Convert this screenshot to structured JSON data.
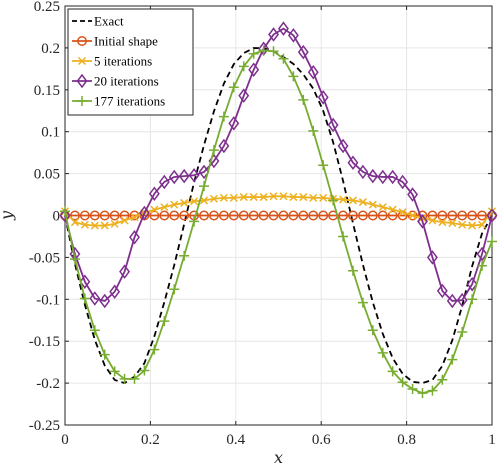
{
  "chart_data": {
    "type": "line",
    "xlabel": "x",
    "ylabel": "y",
    "xlim": [
      0,
      1
    ],
    "ylim": [
      -0.25,
      0.25
    ],
    "x_ticks": [
      0,
      0.2,
      0.4,
      0.6,
      0.8,
      1
    ],
    "x_tick_labels": [
      "0",
      "0.2",
      "0.4",
      "0.6",
      "0.8",
      "1"
    ],
    "y_ticks": [
      -0.25,
      -0.2,
      -0.15,
      -0.1,
      -0.05,
      0,
      0.05,
      0.1,
      0.15,
      0.2,
      0.25
    ],
    "y_tick_labels": [
      "-0.25",
      "-0.2",
      "-0.15",
      "-0.1",
      "-0.05",
      "0",
      "0.05",
      "0.1",
      "0.15",
      "0.2",
      "0.25"
    ],
    "grid": true,
    "legend_position": "top-left",
    "series": [
      {
        "name": "Exact",
        "color": "#000000",
        "style": "dashed",
        "marker": "none",
        "x": [
          0,
          0.0233,
          0.0465,
          0.0698,
          0.093,
          0.1163,
          0.1395,
          0.1628,
          0.186,
          0.2093,
          0.2326,
          0.2558,
          0.2791,
          0.3023,
          0.3256,
          0.3488,
          0.3721,
          0.3953,
          0.4186,
          0.4419,
          0.4651,
          0.4884,
          0.5116,
          0.5349,
          0.5581,
          0.5814,
          0.6047,
          0.6279,
          0.6512,
          0.6744,
          0.6977,
          0.7209,
          0.7442,
          0.7674,
          0.7907,
          0.814,
          0.8372,
          0.8605,
          0.8837,
          0.907,
          0.9302,
          0.9535,
          0.9767,
          1
        ],
        "y": [
          0,
          -0.0577,
          -0.1064,
          -0.1483,
          -0.1789,
          -0.1962,
          -0.2,
          -0.1923,
          -0.1762,
          -0.1443,
          -0.1035,
          -0.0593,
          -0.0103,
          0.0395,
          0.0842,
          0.1243,
          0.1574,
          0.1806,
          0.1938,
          0.1998,
          0.1996,
          0.1958,
          0.1891,
          0.1809,
          0.1684,
          0.1513,
          0.1249,
          0.0876,
          0.0413,
          -0.0091,
          -0.0587,
          -0.1036,
          -0.1412,
          -0.1702,
          -0.1889,
          -0.1985,
          -0.1999,
          -0.1963,
          -0.1794,
          -0.1489,
          -0.1077,
          -0.0605,
          -0.0213,
          0
        ]
      },
      {
        "name": "Initial shape",
        "color": "#d95319",
        "style": "solid",
        "marker": "circle",
        "x": [
          0,
          0.0233,
          0.0465,
          0.0698,
          0.093,
          0.1163,
          0.1395,
          0.1628,
          0.186,
          0.2093,
          0.2326,
          0.2558,
          0.2791,
          0.3023,
          0.3256,
          0.3488,
          0.3721,
          0.3953,
          0.4186,
          0.4419,
          0.4651,
          0.4884,
          0.5116,
          0.5349,
          0.5581,
          0.5814,
          0.6047,
          0.6279,
          0.6512,
          0.6744,
          0.6977,
          0.7209,
          0.7442,
          0.7674,
          0.7907,
          0.814,
          0.8372,
          0.8605,
          0.8837,
          0.907,
          0.9302,
          0.9535,
          0.9767,
          1
        ],
        "y": [
          0,
          0,
          0,
          0,
          0,
          0,
          0,
          0,
          0,
          0,
          0,
          0,
          0,
          0,
          0,
          0,
          0,
          0,
          0,
          0,
          0,
          0,
          0,
          0,
          0,
          0,
          0,
          0,
          0,
          0,
          0,
          0,
          0,
          0,
          0,
          0,
          0,
          0,
          0,
          0,
          0,
          0,
          0,
          0
        ]
      },
      {
        "name": "5 iterations",
        "color": "#edb120",
        "style": "solid",
        "marker": "x",
        "x": [
          0,
          0.0233,
          0.0465,
          0.0698,
          0.093,
          0.1163,
          0.1395,
          0.1628,
          0.186,
          0.2093,
          0.2326,
          0.2558,
          0.2791,
          0.3023,
          0.3256,
          0.3488,
          0.3721,
          0.3953,
          0.4186,
          0.4419,
          0.4651,
          0.4884,
          0.5116,
          0.5349,
          0.5581,
          0.5814,
          0.6047,
          0.6279,
          0.6512,
          0.6744,
          0.6977,
          0.7209,
          0.7442,
          0.7674,
          0.7907,
          0.814,
          0.8372,
          0.8605,
          0.8837,
          0.907,
          0.9302,
          0.9535,
          0.9767,
          1
        ],
        "y": [
          0.005,
          -0.008,
          -0.011,
          -0.012,
          -0.012,
          -0.01,
          -0.006,
          -0.002,
          0.003,
          0.007,
          0.01,
          0.013,
          0.015,
          0.017,
          0.018,
          0.02,
          0.021,
          0.021,
          0.022,
          0.022,
          0.022,
          0.023,
          0.023,
          0.022,
          0.022,
          0.021,
          0.021,
          0.02,
          0.019,
          0.018,
          0.016,
          0.013,
          0.01,
          0.007,
          0.004,
          0.0,
          -0.003,
          -0.006,
          -0.008,
          -0.009,
          -0.011,
          -0.012,
          -0.011,
          0.005
        ]
      },
      {
        "name": "20 iterations",
        "color": "#7e2f8e",
        "style": "solid",
        "marker": "diamond",
        "x": [
          0,
          0.0233,
          0.0465,
          0.0698,
          0.093,
          0.1163,
          0.1395,
          0.1628,
          0.186,
          0.2093,
          0.2326,
          0.2558,
          0.2791,
          0.3023,
          0.3256,
          0.3488,
          0.3721,
          0.3953,
          0.4186,
          0.4419,
          0.4651,
          0.4884,
          0.5116,
          0.5349,
          0.5581,
          0.5814,
          0.6047,
          0.6279,
          0.6512,
          0.6744,
          0.6977,
          0.7209,
          0.7442,
          0.7674,
          0.7907,
          0.814,
          0.8372,
          0.8605,
          0.8837,
          0.907,
          0.9302,
          0.9535,
          0.9767,
          1
        ],
        "y": [
          0,
          -0.046,
          -0.079,
          -0.099,
          -0.102,
          -0.091,
          -0.067,
          -0.026,
          0.003,
          0.026,
          0.04,
          0.046,
          0.047,
          0.048,
          0.052,
          0.065,
          0.083,
          0.11,
          0.143,
          0.174,
          0.199,
          0.216,
          0.223,
          0.215,
          0.195,
          0.171,
          0.141,
          0.108,
          0.083,
          0.063,
          0.052,
          0.047,
          0.046,
          0.046,
          0.04,
          0.025,
          -0.007,
          -0.05,
          -0.09,
          -0.102,
          -0.101,
          -0.082,
          -0.046,
          0
        ]
      },
      {
        "name": "177 iterations",
        "color": "#77ac30",
        "style": "solid",
        "marker": "plus",
        "x": [
          0,
          0.0233,
          0.0465,
          0.0698,
          0.093,
          0.1163,
          0.1395,
          0.1628,
          0.186,
          0.2093,
          0.2326,
          0.2558,
          0.2791,
          0.3023,
          0.3256,
          0.3488,
          0.3721,
          0.3953,
          0.4186,
          0.4419,
          0.4651,
          0.4884,
          0.5116,
          0.5349,
          0.5581,
          0.5814,
          0.6047,
          0.6279,
          0.6512,
          0.6744,
          0.6977,
          0.7209,
          0.7442,
          0.7674,
          0.7907,
          0.814,
          0.8372,
          0.8605,
          0.8837,
          0.907,
          0.9302,
          0.9535,
          0.9767,
          1
        ],
        "y": [
          0.005,
          -0.052,
          -0.099,
          -0.137,
          -0.166,
          -0.186,
          -0.195,
          -0.195,
          -0.185,
          -0.16,
          -0.126,
          -0.088,
          -0.048,
          -0.007,
          0.035,
          0.078,
          0.118,
          0.153,
          0.178,
          0.193,
          0.197,
          0.196,
          0.187,
          0.166,
          0.138,
          0.101,
          0.06,
          0.018,
          -0.025,
          -0.066,
          -0.104,
          -0.137,
          -0.164,
          -0.186,
          -0.199,
          -0.207,
          -0.212,
          -0.209,
          -0.196,
          -0.172,
          -0.139,
          -0.1,
          -0.06,
          -0.031
        ]
      }
    ]
  }
}
